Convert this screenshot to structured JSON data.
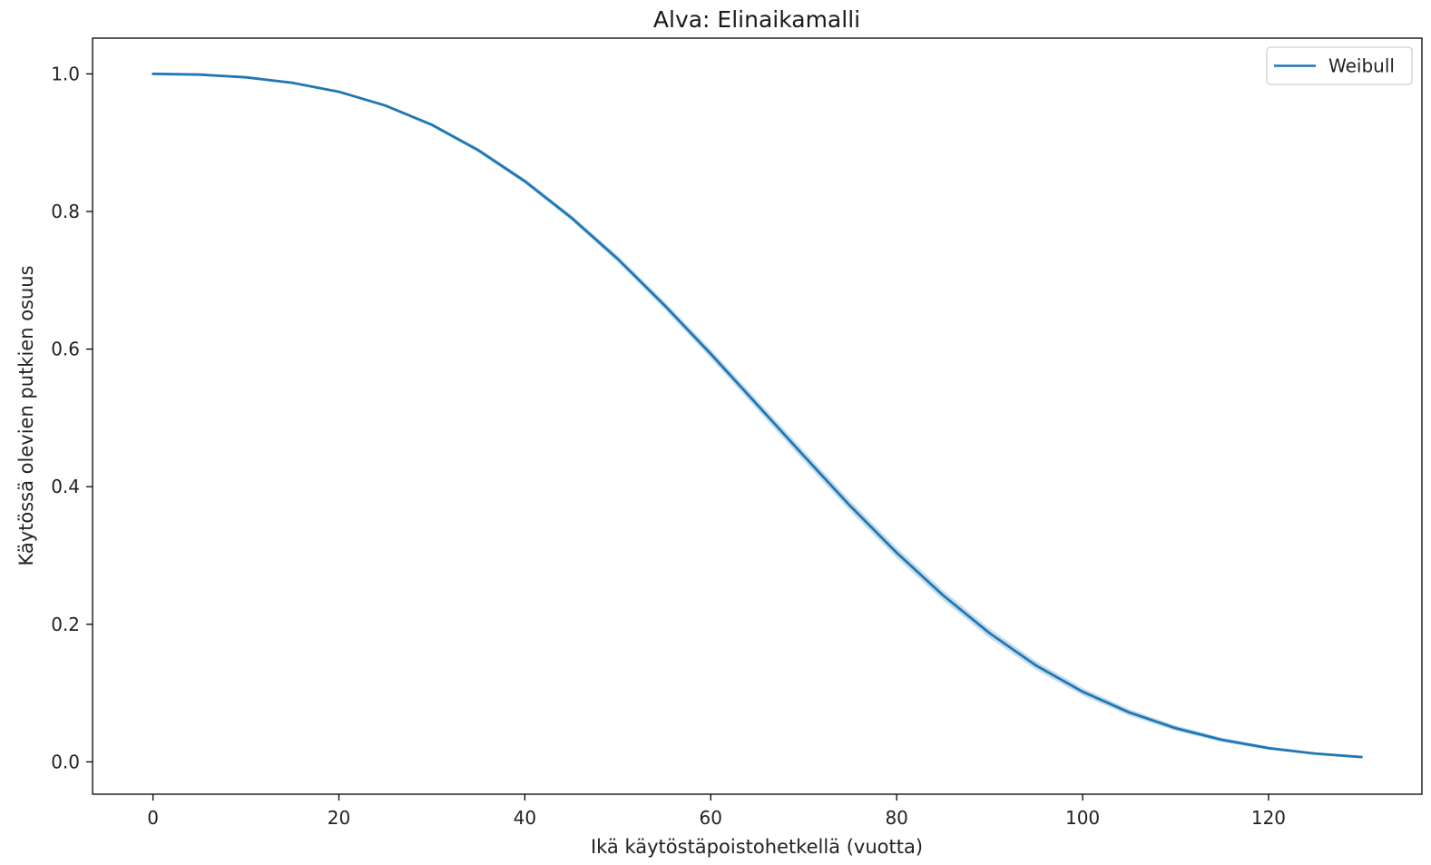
{
  "chart_data": {
    "type": "line",
    "title": "Alva: Elinaikamalli",
    "xlabel": "Ikä käytöstäpoistohetkellä (vuotta)",
    "ylabel": "Käytössä olevien putkien osuus",
    "xlim": [
      -6.5,
      136.5
    ],
    "ylim": [
      -0.047,
      1.052
    ],
    "xticks": [
      0,
      20,
      40,
      60,
      80,
      100,
      120
    ],
    "xtick_labels": [
      "0",
      "20",
      "40",
      "60",
      "80",
      "100",
      "120"
    ],
    "yticks": [
      0.0,
      0.2,
      0.4,
      0.6,
      0.8,
      1.0
    ],
    "ytick_labels": [
      "0.0",
      "0.2",
      "0.4",
      "0.6",
      "0.8",
      "1.0"
    ],
    "grid": false,
    "legend_position": "top-right",
    "series": [
      {
        "name": "Weibull",
        "color": "#1f77b4",
        "band_color": "#1f77b4",
        "x": [
          0,
          5,
          10,
          15,
          20,
          25,
          30,
          35,
          40,
          45,
          50,
          55,
          60,
          65,
          70,
          75,
          80,
          85,
          90,
          95,
          100,
          105,
          110,
          115,
          120,
          125,
          130
        ],
        "y": [
          1.0,
          0.999,
          0.995,
          0.987,
          0.974,
          0.954,
          0.926,
          0.889,
          0.844,
          0.791,
          0.731,
          0.664,
          0.593,
          0.519,
          0.445,
          0.372,
          0.304,
          0.242,
          0.187,
          0.14,
          0.102,
          0.072,
          0.049,
          0.032,
          0.02,
          0.012,
          0.007
        ],
        "ci_halfwidth": [
          0,
          0.0003,
          0.0006,
          0.001,
          0.0015,
          0.002,
          0.0025,
          0.003,
          0.0035,
          0.004,
          0.0048,
          0.0056,
          0.0064,
          0.007,
          0.0074,
          0.0076,
          0.0076,
          0.0074,
          0.007,
          0.0064,
          0.0056,
          0.0048,
          0.004,
          0.0032,
          0.0024,
          0.0016,
          0.001
        ]
      }
    ]
  }
}
